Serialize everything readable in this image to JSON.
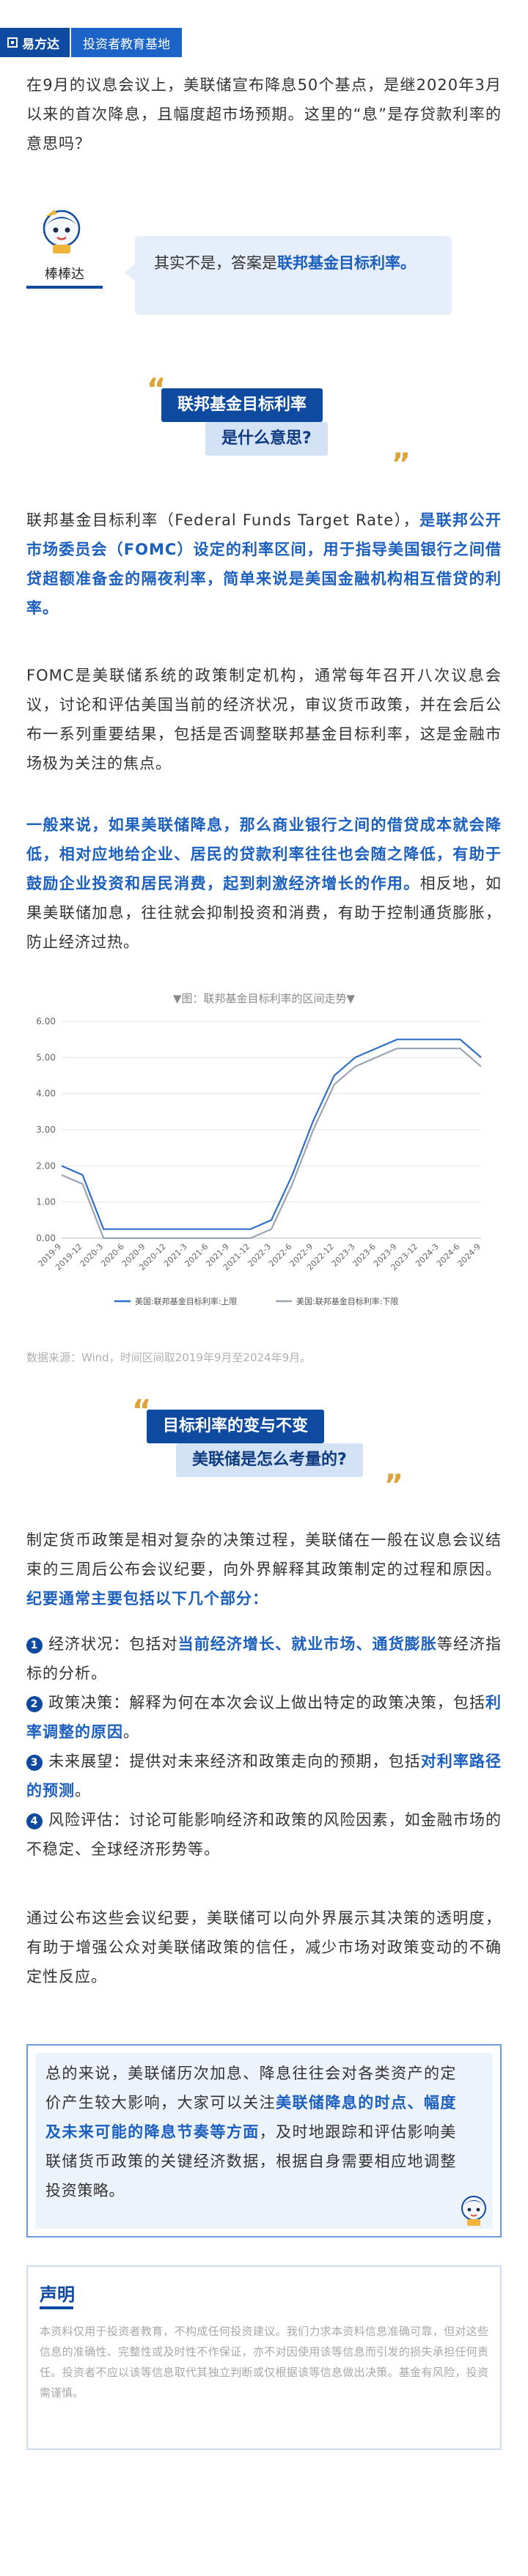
{
  "header": {
    "brand": "易方达",
    "tag": "投资者教育基地"
  },
  "intro": {
    "question": "在9月的议息会议上，美联储宣布降息50个基点，是继2020年3月以来的首次降息，且幅度超市场预期。这里的“息”是存贷款利率的意思吗？"
  },
  "character": {
    "name": "棒棒达",
    "answer_plain": "其实不是，答案是",
    "answer_highlight": "联邦基金目标利率",
    "answer_end": "。"
  },
  "section1": {
    "title_line1": "联邦基金目标利率",
    "title_line2": "是什么意思?",
    "quote_open": "“",
    "quote_close": "”"
  },
  "p1": {
    "a": "联邦基金目标利率（Federal Funds Target Rate），",
    "b": "是联邦公开市场委员会（FOMC）设定的利率区间，用于指导美国银行之间借贷超额准备金的隔夜利率，简单来说是美国金融机构相互借贷的利率。"
  },
  "p2": {
    "text": "FOMC是美联储系统的政策制定机构，通常每年召开八次议息会议，讨论和评估美国当前的经济状况，审议货币政策，并在会后公布一系列重要结果，包括是否调整联邦基金目标利率，这是金融市场极为关注的焦点。"
  },
  "p3": {
    "a": "一般来说，如果美联储降息，那么商业银行之间的借贷成本就会降低，相对应地给企业、居民的贷款利率往往也会随之降低，有助于鼓励企业投资和居民消费，起到刺激经济增长的作用。",
    "b": "相反地，如果美联储加息，往往就会抑制投资和消费，有助于控制通货膨胀，防止经济过热。"
  },
  "chart": {
    "title": "▼图：联邦基金目标利率的区间走势▼",
    "source": "数据来源：Wind，时间区间取2019年9月至2024年9月。"
  },
  "chart_data": {
    "type": "line",
    "title": "▼图：联邦基金目标利率的区间走势▼",
    "xlabel": "",
    "ylabel": "",
    "ylim": [
      0,
      6
    ],
    "yticks": [
      "0.00",
      "1.00",
      "2.00",
      "3.00",
      "4.00",
      "5.00",
      "6.00"
    ],
    "xticks": [
      "2019-9",
      "2019-12",
      "2020-3",
      "2020-6",
      "2020-9",
      "2020-12",
      "2021-3",
      "2021-6",
      "2021-9",
      "2021-12",
      "2022-3",
      "2022-6",
      "2022-9",
      "2022-12",
      "2023-3",
      "2023-6",
      "2023-9",
      "2023-12",
      "2024-3",
      "2024-6",
      "2024-9"
    ],
    "xtick_labels": [
      "2019-9",
      "2019-12",
      "2020-3",
      "2020-6",
      "2020-9",
      "2020-12",
      "2021-3",
      "2021-6",
      "2021-9",
      "2021-12",
      "2022-3",
      "2022-6",
      "2022-9",
      "2022-12",
      "2023-3",
      "2023-6",
      "2023-9",
      "2023-12",
      "2024-3",
      "2024-6",
      "2024-9"
    ],
    "grid": true,
    "legend_position": "bottom",
    "series": [
      {
        "name": "美国:联邦基金目标利率:上限",
        "color": "#2f6fc9",
        "values": [
          2.0,
          1.75,
          0.25,
          0.25,
          0.25,
          0.25,
          0.25,
          0.25,
          0.25,
          0.25,
          0.5,
          1.75,
          3.25,
          4.5,
          5.0,
          5.25,
          5.5,
          5.5,
          5.5,
          5.5,
          5.0
        ]
      },
      {
        "name": "美国:联邦基金目标利率:下限",
        "color": "#9aa4b2",
        "values": [
          1.75,
          1.5,
          0.0,
          0.0,
          0.0,
          0.0,
          0.0,
          0.0,
          0.0,
          0.0,
          0.25,
          1.5,
          3.0,
          4.25,
          4.75,
          5.0,
          5.25,
          5.25,
          5.25,
          5.25,
          4.75
        ]
      }
    ]
  },
  "section2": {
    "title_line1": "目标利率的变与不变",
    "title_line2": "美联储是怎么考量的?",
    "quote_open": "“",
    "quote_close": "”"
  },
  "p4": {
    "a": "制定货币政策是相对复杂的决策过程，美联储在一般在议息会议结束的三周后公布会议纪要，向外界解释其政策制定的过程和原因。",
    "b": "纪要通常主要包括以下几个部分："
  },
  "items": [
    {
      "num": "1",
      "a": "经济状况：包括对",
      "b": "当前经济增长、就业市场、通货膨胀",
      "c": "等经济指标的分析。"
    },
    {
      "num": "2",
      "a": "政策决策：解释为何在本次会议上做出特定的政策决策，包括",
      "b": "利率调整的原因",
      "c": "。"
    },
    {
      "num": "3",
      "a": "未来展望：提供对未来经济和政策走向的预期，包括",
      "b": "对利率路径的预测",
      "c": "。"
    },
    {
      "num": "4",
      "a": "风险评估：讨论可能影响经济和政策的风险因素，如金融市场的不稳定、全球经济形势等。",
      "b": "",
      "c": ""
    }
  ],
  "p5": {
    "text": "通过公布这些会议纪要，美联储可以向外界展示其决策的透明度，有助于增强公众对美联储政策的信任，减少市场对政策变动的不确定性反应。"
  },
  "summary": {
    "a": "总的来说，美联储历次加息、降息往往会对各类资产的定价产生较大影响，大家可以关注",
    "b": "美联储降息的时点、幅度及未来可能的降息节奏等方面",
    "c": "，及时地跟踪和评估影响美联储货币政策的关键经济数据，根据自身需要相应地调整投资策略。"
  },
  "disclaimer": {
    "title": "声明",
    "text": "本资料仅用于投资者教育，不构成任何投资建议。我们力求本资料信息准确可靠，但对这些信息的准确性、完整性或及时性不作保证，亦不对因使用该等信息而引发的损失承担任何责任。投资者不应以该等信息取代其独立判断或仅根据该等信息做出决策。基金有风险，投资需谨慎。"
  }
}
